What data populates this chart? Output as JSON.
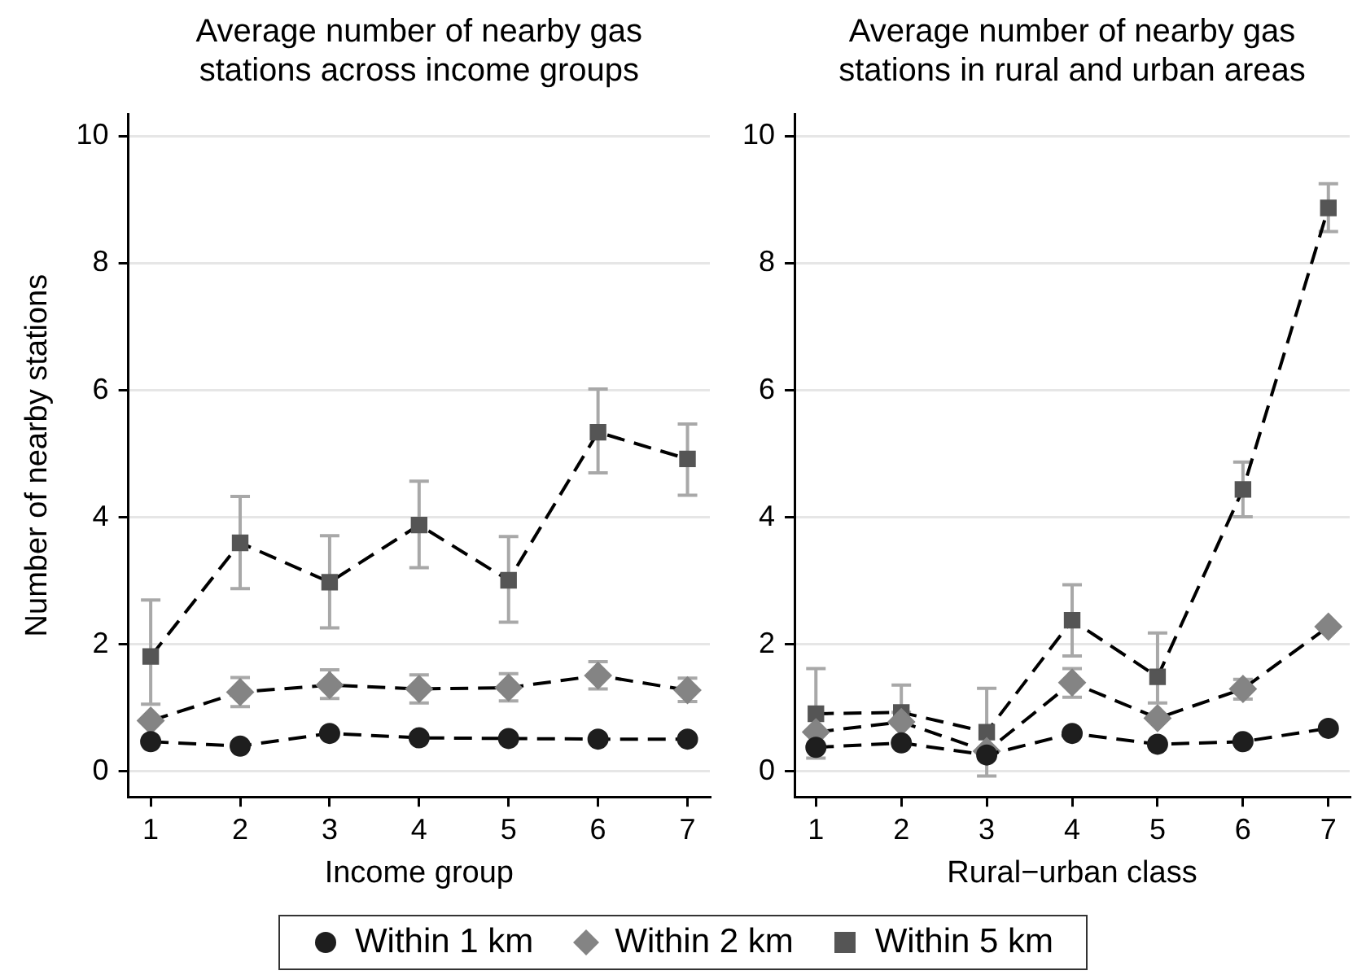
{
  "chart_data": [
    {
      "type": "line",
      "title": "Average number of nearby gas stations across income groups",
      "xlabel": "Income group",
      "ylabel": "Number of nearby stations",
      "x": [
        1,
        2,
        3,
        4,
        5,
        6,
        7
      ],
      "xlim": [
        0.75,
        7.25
      ],
      "xticks": [
        1,
        2,
        3,
        4,
        5,
        6,
        7
      ],
      "ylim": [
        -0.4,
        10.35
      ],
      "yticks": [
        0,
        2,
        4,
        6,
        8,
        10
      ],
      "grid": "y",
      "legend": "bottom",
      "series": [
        {
          "name": "Within 1 km",
          "color": "#1e1e1e",
          "marker": "circle",
          "line_style": "dashed",
          "values": [
            0.47,
            0.4,
            0.6,
            0.53,
            0.52,
            0.51,
            0.51
          ]
        },
        {
          "name": "Within 2 km",
          "color": "#848484",
          "marker": "diamond",
          "line_style": "dashed",
          "values": [
            0.8,
            1.25,
            1.36,
            1.3,
            1.32,
            1.51,
            1.28
          ],
          "errors": [
            null,
            [
              1.02,
              1.48
            ],
            [
              1.15,
              1.6
            ],
            [
              1.08,
              1.52
            ],
            [
              1.11,
              1.54
            ],
            [
              1.3,
              1.73
            ],
            [
              1.1,
              1.47
            ]
          ]
        },
        {
          "name": "Within 5 km",
          "color": "#555555",
          "marker": "square",
          "line_style": "dashed",
          "values": [
            1.81,
            3.6,
            2.98,
            3.88,
            3.01,
            5.34,
            4.92
          ],
          "errors": [
            [
              1.06,
              2.7
            ],
            [
              2.88,
              4.33
            ],
            [
              2.26,
              3.71
            ],
            [
              3.21,
              4.57
            ],
            [
              2.35,
              3.7
            ],
            [
              4.7,
              6.02
            ],
            [
              4.35,
              5.47
            ]
          ]
        }
      ]
    },
    {
      "type": "line",
      "title": "Average number of nearby gas stations in rural and urban areas",
      "xlabel": "Rural−urban class",
      "x": [
        1,
        2,
        3,
        4,
        5,
        6,
        7
      ],
      "xlim": [
        0.75,
        7.25
      ],
      "xticks": [
        1,
        2,
        3,
        4,
        5,
        6,
        7
      ],
      "ylim": [
        -0.4,
        10.35
      ],
      "yticks": [
        0,
        2,
        4,
        6,
        8,
        10
      ],
      "grid": "y",
      "series": [
        {
          "color": "#1e1e1e",
          "marker": "circle",
          "line_style": "dashed",
          "values": [
            0.38,
            0.45,
            0.26,
            0.6,
            0.43,
            0.47,
            0.68
          ]
        },
        {
          "color": "#848484",
          "marker": "diamond",
          "line_style": "dashed",
          "values": [
            0.62,
            0.78,
            0.32,
            1.4,
            0.84,
            1.3,
            2.28
          ],
          "errors": [
            null,
            null,
            null,
            [
              1.17,
              1.62
            ],
            null,
            [
              1.14,
              1.45
            ],
            null
          ]
        },
        {
          "color": "#555555",
          "marker": "square",
          "line_style": "dashed",
          "values": [
            0.91,
            0.93,
            0.62,
            2.38,
            1.49,
            4.44,
            8.87
          ],
          "errors": [
            [
              0.21,
              1.62
            ],
            [
              0.93,
              1.36
            ],
            [
              -0.07,
              1.31
            ],
            [
              1.82,
              2.94
            ],
            [
              1.08,
              2.18
            ],
            [
              4.01,
              4.87
            ],
            [
              8.5,
              9.25
            ]
          ]
        }
      ]
    }
  ]
}
